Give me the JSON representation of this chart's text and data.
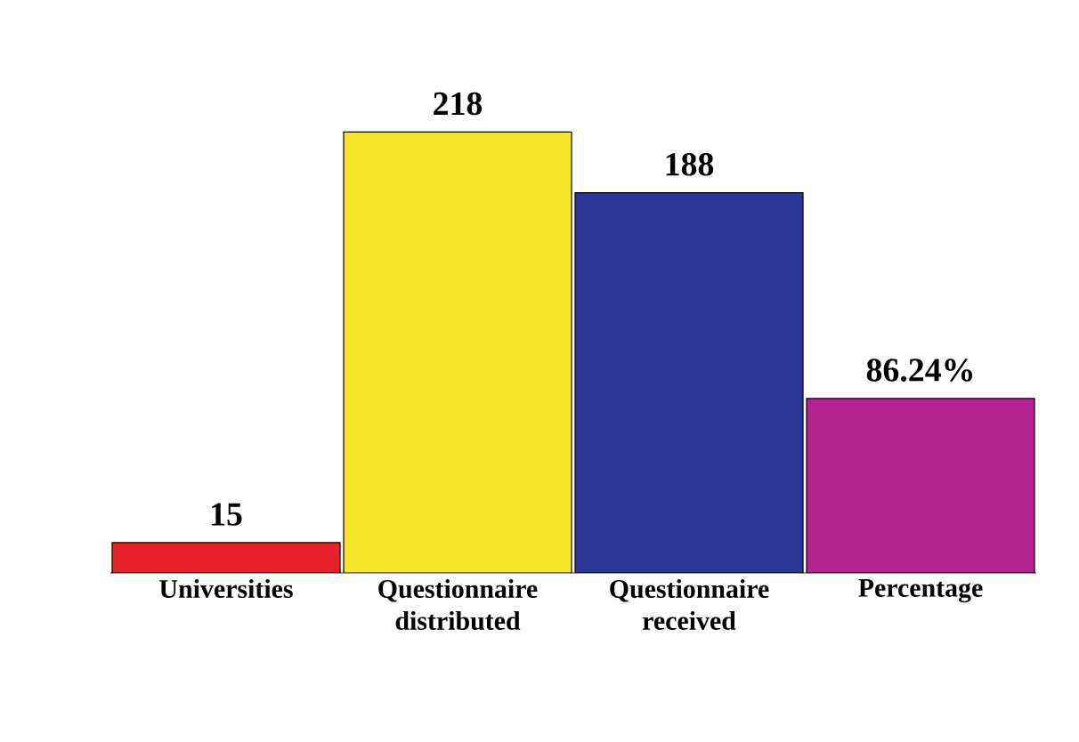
{
  "chart_data": {
    "type": "bar",
    "categories": [
      "Universities",
      "Questionnaire distributed",
      "Questionnaire received",
      "Percentage"
    ],
    "values": [
      15,
      218,
      188,
      86.24
    ],
    "colors": [
      "#e8202a",
      "#f5e62a",
      "#2b3794",
      "#b3228e"
    ],
    "value_labels": [
      "15",
      "218",
      "188",
      "86.24%"
    ],
    "tick_labels": "x"
  }
}
